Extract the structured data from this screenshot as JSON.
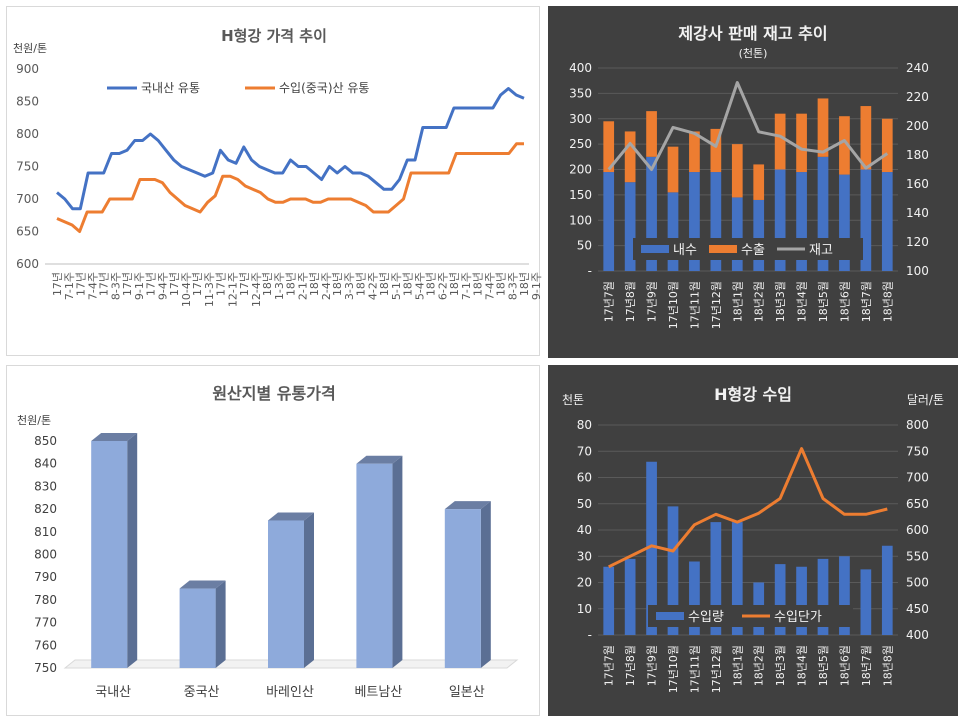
{
  "chart_data": [
    {
      "type": "line",
      "title": "H형강 가격 추이",
      "ylabel": "천원/톤",
      "ylim": [
        600,
        900
      ],
      "yticks": [
        600,
        650,
        700,
        750,
        800,
        850,
        900
      ],
      "x_ticks": [
        "17년 7-1주",
        "17년 7-4주",
        "17년 8-3주",
        "17년 9-1주",
        "17년 9-4주",
        "17년 10-4주",
        "17년 11-3주",
        "17년 12-1주",
        "17년 12-4주",
        "18년 1-3주",
        "18년 2-1주",
        "18년 2-4주",
        "18년 3-3주",
        "18년 4-2주",
        "18년 5-1주",
        "18년 5-4주",
        "18년 6-2주",
        "18년 7-1주",
        "18년 7-4주",
        "18년 8-3주",
        "18년 9-1주"
      ],
      "legend_position": "top",
      "series": [
        {
          "name": "국내산 유통",
          "color": "#4472c4",
          "values": [
            710,
            700,
            685,
            685,
            740,
            740,
            740,
            770,
            770,
            775,
            790,
            790,
            800,
            790,
            775,
            760,
            750,
            745,
            740,
            735,
            740,
            775,
            760,
            755,
            780,
            760,
            750,
            745,
            740,
            740,
            760,
            750,
            750,
            740,
            730,
            750,
            740,
            750,
            740,
            740,
            735,
            725,
            715,
            715,
            730,
            760,
            760,
            810,
            810,
            810,
            810,
            840,
            840,
            840,
            840,
            840,
            840,
            860,
            870,
            860,
            855
          ]
        },
        {
          "name": "수입(중국)산 유통",
          "color": "#ed7d31",
          "values": [
            670,
            665,
            660,
            650,
            680,
            680,
            680,
            700,
            700,
            700,
            700,
            730,
            730,
            730,
            725,
            710,
            700,
            690,
            685,
            680,
            695,
            705,
            735,
            735,
            730,
            720,
            715,
            710,
            700,
            695,
            695,
            700,
            700,
            700,
            695,
            695,
            700,
            700,
            700,
            700,
            695,
            690,
            680,
            680,
            680,
            690,
            700,
            740,
            740,
            740,
            740,
            740,
            740,
            770,
            770,
            770,
            770,
            770,
            770,
            770,
            770,
            785,
            785
          ]
        }
      ]
    },
    {
      "type": "bar",
      "title": "제강사 판매 재고 추이",
      "subtitle": "(천톤)",
      "categories": [
        "17년7월",
        "17년8월",
        "17년9월",
        "17년10월",
        "17년11월",
        "17년12월",
        "18년1월",
        "18년2월",
        "18년3월",
        "18년4월",
        "18년5월",
        "18년6월",
        "18년7월",
        "18년8월"
      ],
      "ylim_left": [
        0,
        400
      ],
      "yticks_left": [
        "-",
        "50",
        "100",
        "150",
        "200",
        "250",
        "300",
        "350",
        "400"
      ],
      "ylim_right": [
        100,
        240
      ],
      "yticks_right": [
        100,
        120,
        140,
        160,
        180,
        200,
        220,
        240
      ],
      "legend_position": "bottom",
      "series": [
        {
          "name": "내수",
          "type": "bar",
          "stack": true,
          "color": "#4472c4",
          "values": [
            195,
            175,
            225,
            155,
            195,
            195,
            145,
            140,
            200,
            195,
            225,
            190,
            200,
            195
          ]
        },
        {
          "name": "수출",
          "type": "bar",
          "stack": true,
          "color": "#ed7d31",
          "values": [
            100,
            100,
            90,
            90,
            80,
            85,
            105,
            70,
            110,
            115,
            115,
            115,
            125,
            105
          ]
        },
        {
          "name": "재고",
          "type": "line",
          "axis": "right",
          "color": "#a5a5a5",
          "values": [
            170,
            188,
            170,
            199,
            195,
            186,
            230,
            196,
            193,
            184,
            182,
            190,
            171,
            181
          ]
        }
      ]
    },
    {
      "type": "bar",
      "title": "원산지별 유통가격",
      "ylabel": "천원/톤",
      "ylim": [
        750,
        850
      ],
      "yticks": [
        750,
        760,
        770,
        780,
        790,
        800,
        810,
        820,
        830,
        840,
        850
      ],
      "categories": [
        "국내산",
        "중국산",
        "바레인산",
        "베트남산",
        "일본산"
      ],
      "color": "#8eaadb",
      "values": [
        850,
        785,
        815,
        840,
        820
      ]
    },
    {
      "type": "bar",
      "title": "H형강 수입",
      "ylabel": "천톤",
      "ylabel_right": "달러/톤",
      "categories": [
        "17년7월",
        "17년8월",
        "17년9월",
        "17년10월",
        "17년11월",
        "17년12월",
        "18년1월",
        "18년2월",
        "18년3월",
        "18년4월",
        "18년5월",
        "18년6월",
        "18년7월",
        "18년8월"
      ],
      "ylim_left": [
        0,
        80
      ],
      "yticks_left": [
        "-",
        "10",
        "20",
        "30",
        "40",
        "50",
        "60",
        "70",
        "80"
      ],
      "ylim_right": [
        400,
        800
      ],
      "yticks_right": [
        400,
        450,
        500,
        550,
        600,
        650,
        700,
        750,
        800
      ],
      "legend_position": "bottom",
      "series": [
        {
          "name": "수입량",
          "type": "bar",
          "color": "#4472c4",
          "values": [
            26,
            29,
            66,
            49,
            28,
            43,
            43,
            20,
            27,
            26,
            29,
            30,
            25,
            34
          ]
        },
        {
          "name": "수입단가",
          "type": "line",
          "axis": "right",
          "color": "#ed7d31",
          "values": [
            530,
            550,
            570,
            560,
            610,
            630,
            615,
            632,
            660,
            755,
            660,
            630,
            630,
            640
          ]
        }
      ]
    }
  ]
}
